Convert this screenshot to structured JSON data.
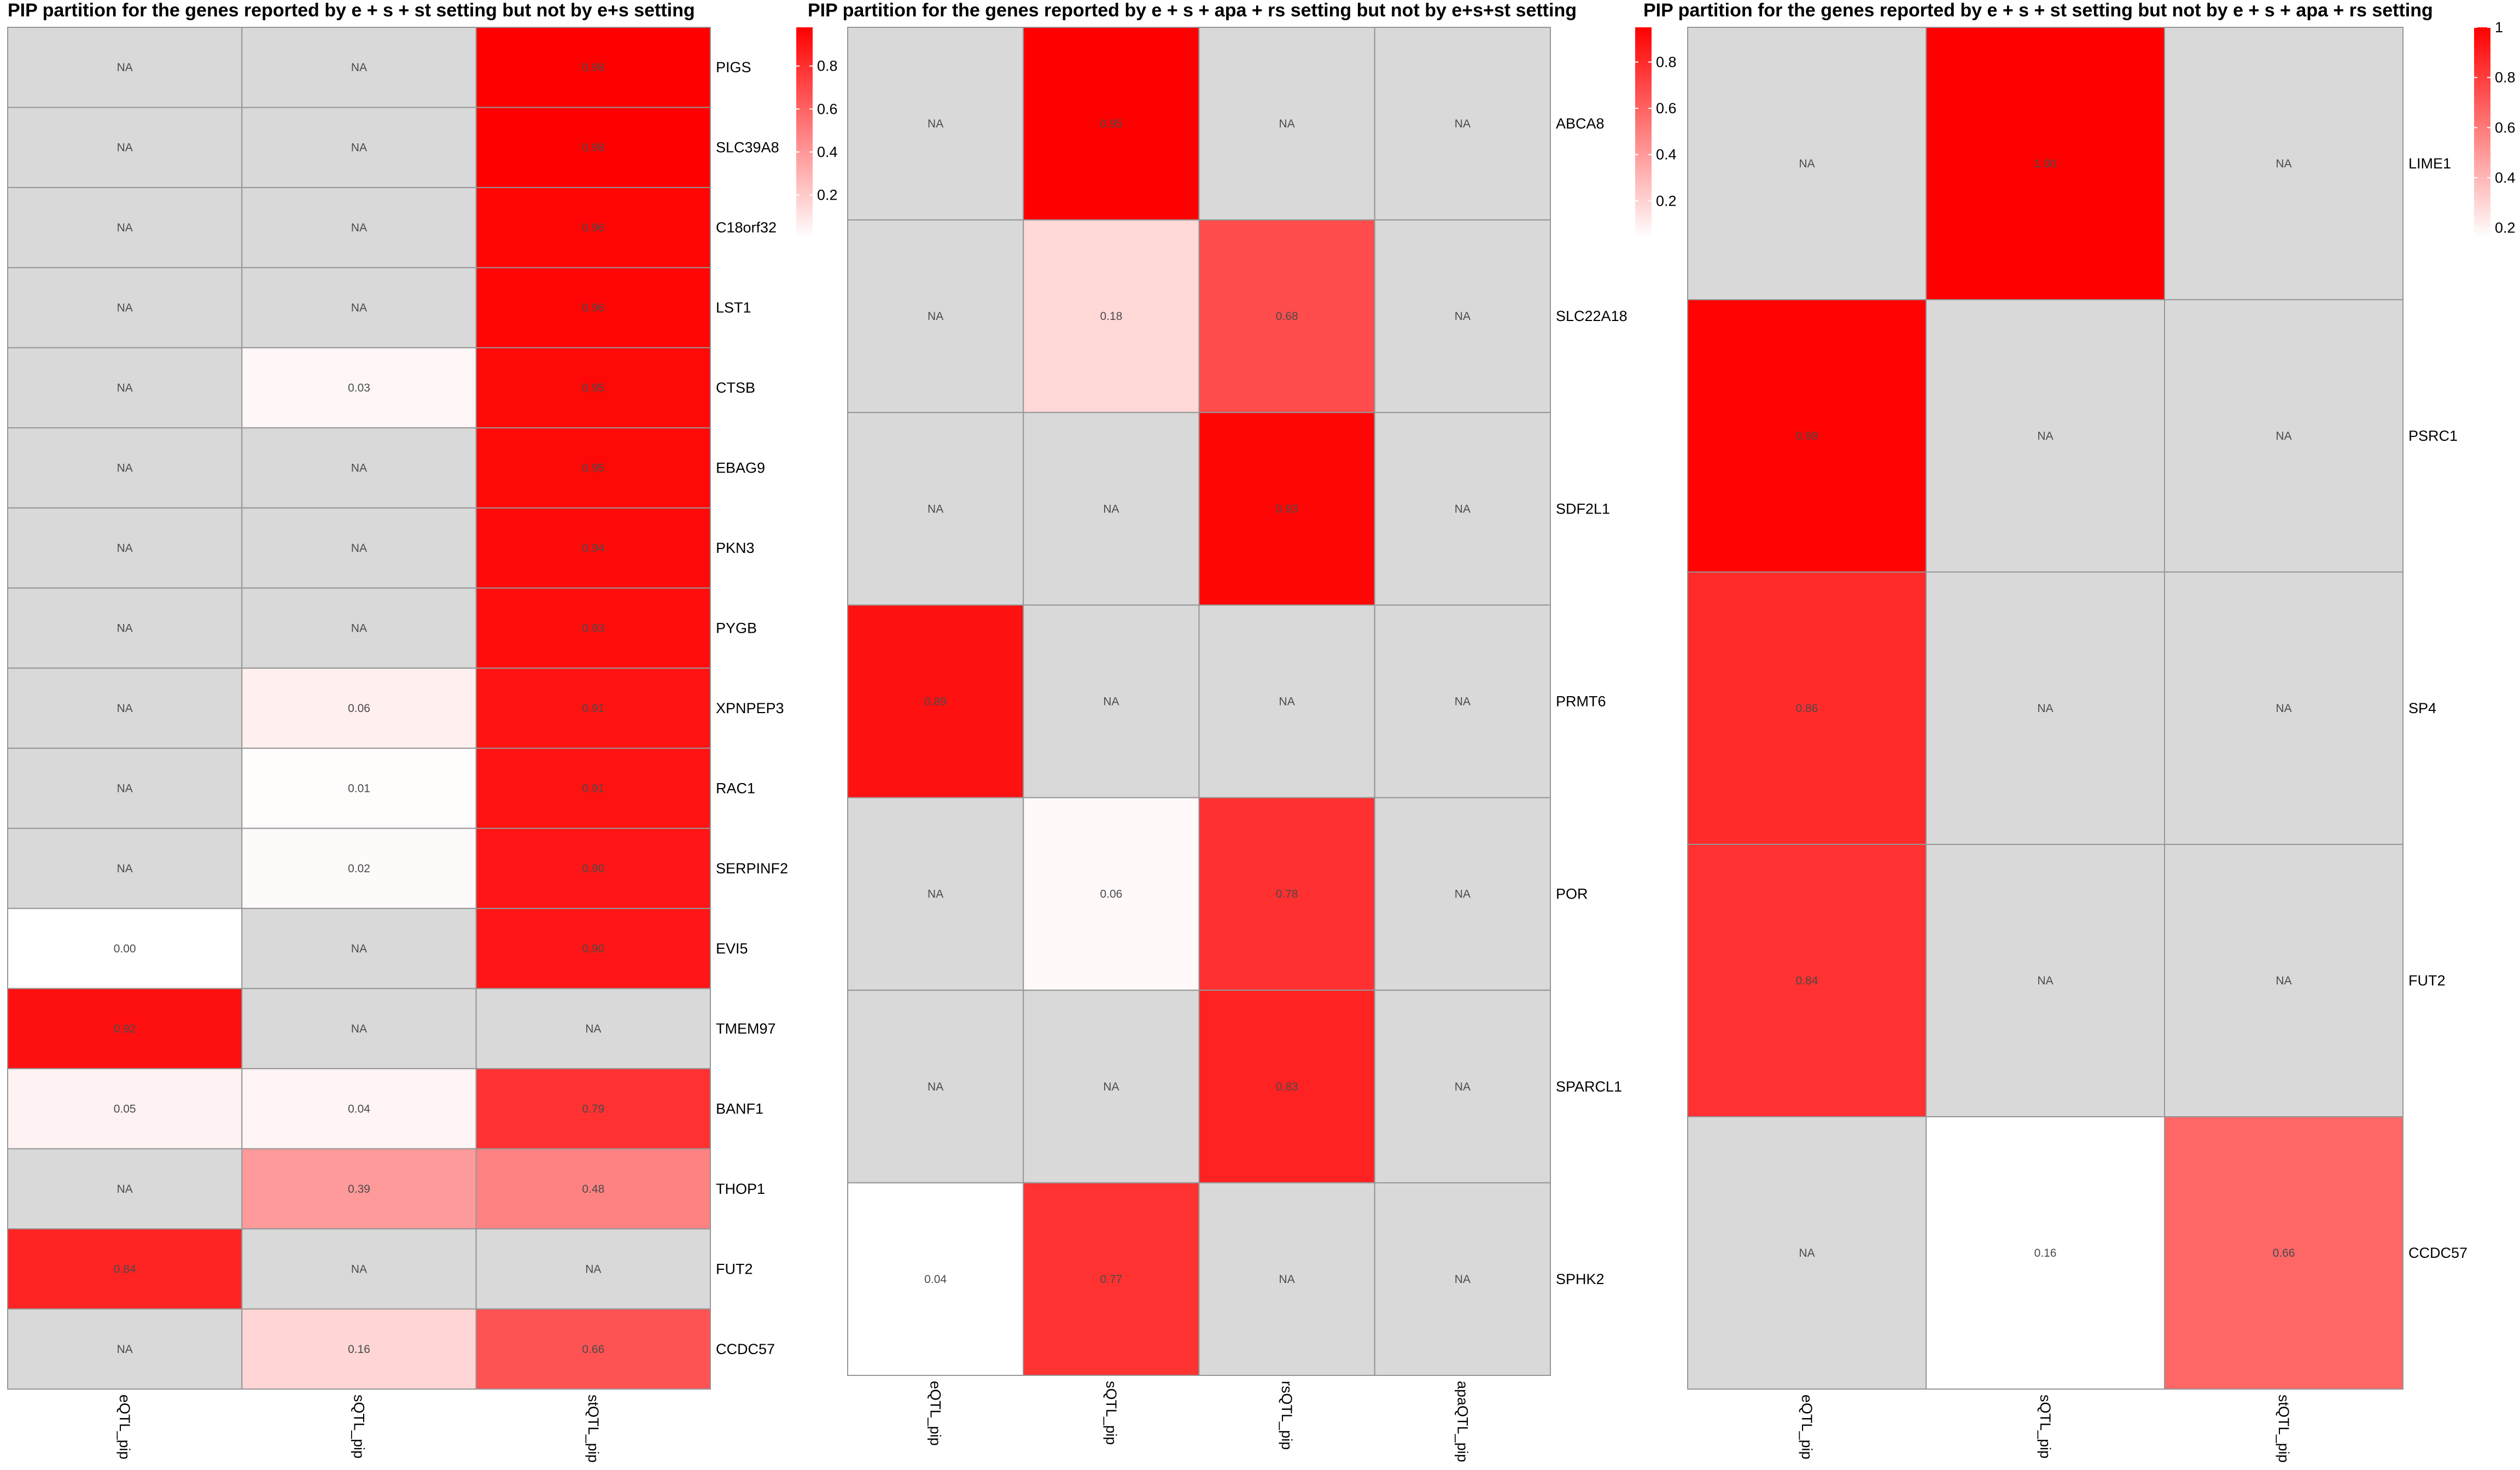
{
  "colors": {
    "na": "#d9d9d9",
    "low": "#ffffff",
    "high": "#ff0000",
    "grid": "#969696"
  },
  "na_label": "NA",
  "chart_data": [
    {
      "type": "heatmap",
      "title": "PIP partition for the genes reported by e + s + st setting but not by e+s setting",
      "columns": [
        "eQTL_pip",
        "sQTL_pip",
        "stQTL_pip"
      ],
      "rows": [
        "PIGS",
        "SLC39A8",
        "C18orf32",
        "LST1",
        "CTSB",
        "EBAG9",
        "PKN3",
        "PYGB",
        "XPNPEP3",
        "RAC1",
        "SERPINF2",
        "EVI5",
        "TMEM97",
        "BANF1",
        "THOP1",
        "FUT2",
        "CCDC57"
      ],
      "values": [
        [
          null,
          null,
          0.98
        ],
        [
          null,
          null,
          0.98
        ],
        [
          null,
          null,
          0.96
        ],
        [
          null,
          null,
          0.96
        ],
        [
          null,
          0.03,
          0.95
        ],
        [
          null,
          null,
          0.95
        ],
        [
          null,
          null,
          0.94
        ],
        [
          null,
          null,
          0.93
        ],
        [
          null,
          0.06,
          0.91
        ],
        [
          null,
          0.01,
          0.91
        ],
        [
          null,
          0.02,
          0.9
        ],
        [
          0.0,
          null,
          0.9
        ],
        [
          0.92,
          null,
          null
        ],
        [
          0.05,
          0.04,
          0.79
        ],
        [
          null,
          0.39,
          0.48
        ],
        [
          0.84,
          null,
          null
        ],
        [
          null,
          0.16,
          0.66
        ]
      ],
      "legend": {
        "ticks": [
          "0.2",
          "0.4",
          "0.6",
          "0.8"
        ],
        "tick_values": [
          0.2,
          0.4,
          0.6,
          0.8
        ],
        "min": 0.0,
        "max": 0.98
      }
    },
    {
      "type": "heatmap",
      "title": "PIP partition for the genes reported by e + s + apa + rs setting but not by e+s+st setting",
      "columns": [
        "eQTL_pip",
        "sQTL_pip",
        "rsQTL_pip",
        "apaQTL_pip"
      ],
      "rows": [
        "ABCA8",
        "SLC22A18",
        "SDF2L1",
        "PRMT6",
        "POR",
        "SPARCL1",
        "SPHK2"
      ],
      "values": [
        [
          null,
          0.95,
          null,
          null
        ],
        [
          null,
          0.18,
          0.68,
          null
        ],
        [
          null,
          null,
          0.93,
          null
        ],
        [
          0.89,
          null,
          null,
          null
        ],
        [
          null,
          0.06,
          0.78,
          null
        ],
        [
          null,
          null,
          0.83,
          null
        ],
        [
          0.04,
          0.77,
          null,
          null
        ]
      ],
      "legend": {
        "ticks": [
          "0.2",
          "0.4",
          "0.6",
          "0.8"
        ],
        "tick_values": [
          0.2,
          0.4,
          0.6,
          0.8
        ],
        "min": 0.04,
        "max": 0.95
      }
    },
    {
      "type": "heatmap",
      "title": "PIP partition for the genes reported by e + s + st setting but not by e + s + apa + rs setting",
      "columns": [
        "eQTL_pip",
        "sQTL_pip",
        "stQTL_pip"
      ],
      "rows": [
        "LIME1",
        "PSRC1",
        "SP4",
        "FUT2",
        "CCDC57"
      ],
      "values": [
        [
          null,
          1.0,
          null
        ],
        [
          0.99,
          null,
          null
        ],
        [
          0.86,
          null,
          null
        ],
        [
          0.84,
          null,
          null
        ],
        [
          null,
          0.16,
          0.66
        ]
      ],
      "legend": {
        "ticks": [
          "0.2",
          "0.4",
          "0.6",
          "0.8",
          "1"
        ],
        "tick_values": [
          0.2,
          0.4,
          0.6,
          0.8,
          1.0
        ],
        "min": 0.16,
        "max": 1.0
      }
    }
  ]
}
